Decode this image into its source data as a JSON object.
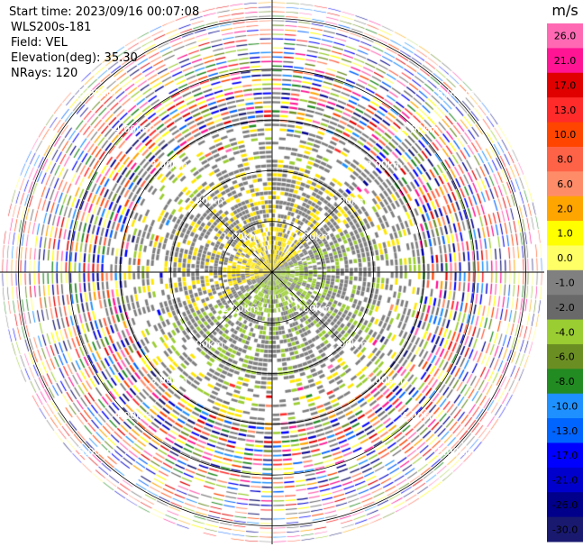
{
  "header": {
    "start_time": "Start time: 2023/09/16 00:07:08",
    "instrument": "WLS200s-181",
    "field": "Field: VEL",
    "elevation": "Elevation(deg): 35.30",
    "nrays": "NRays: 120"
  },
  "chart_data": {
    "type": "heatmap",
    "projection": "polar-ppi",
    "field": "VEL",
    "units": "m/s",
    "n_rays": 120,
    "elevation_deg": 35.3,
    "range_rings_km": [
      1,
      2,
      3,
      4,
      5
    ],
    "ring_labels": [
      "1.00km",
      "2.00km",
      "3.00km",
      "4.00km",
      "5.00km"
    ],
    "max_range_km": 5.4,
    "colorbar": {
      "title": "m/s",
      "ticks": [
        "26.0",
        "21.0",
        "17.0",
        "13.0",
        "10.0",
        "8.0",
        "6.0",
        "2.0",
        "1.0",
        "0.0",
        "-1.0",
        "-2.0",
        "-4.0",
        "-6.0",
        "-8.0",
        "-10.0",
        "-13.0",
        "-17.0",
        "-21.0",
        "-26.0",
        "-30.0"
      ],
      "colors": [
        "#ff69b4",
        "#ff1493",
        "#e00000",
        "#ff2a2a",
        "#ff4500",
        "#ff6347",
        "#ff8c69",
        "#ffa500",
        "#ffff00",
        "#ffff66",
        "#808080",
        "#696969",
        "#9acd32",
        "#6b8e23",
        "#228b22",
        "#1e90ff",
        "#0064ff",
        "#0000ff",
        "#0000cd",
        "#00008b",
        "#191970"
      ]
    },
    "near_field_pattern": {
      "description_values": {
        "positive_sector": "west/north-west near 1 m/s",
        "negative_sector": "east/south-east near -1 m/s",
        "center_value": 0.0
      }
    }
  },
  "colors": {
    "background": "#ffffff",
    "ring_stroke": "#000000",
    "center_gray": "#7f7f7f",
    "near_yellow": "#ffe600",
    "near_green": "#9acd32"
  }
}
